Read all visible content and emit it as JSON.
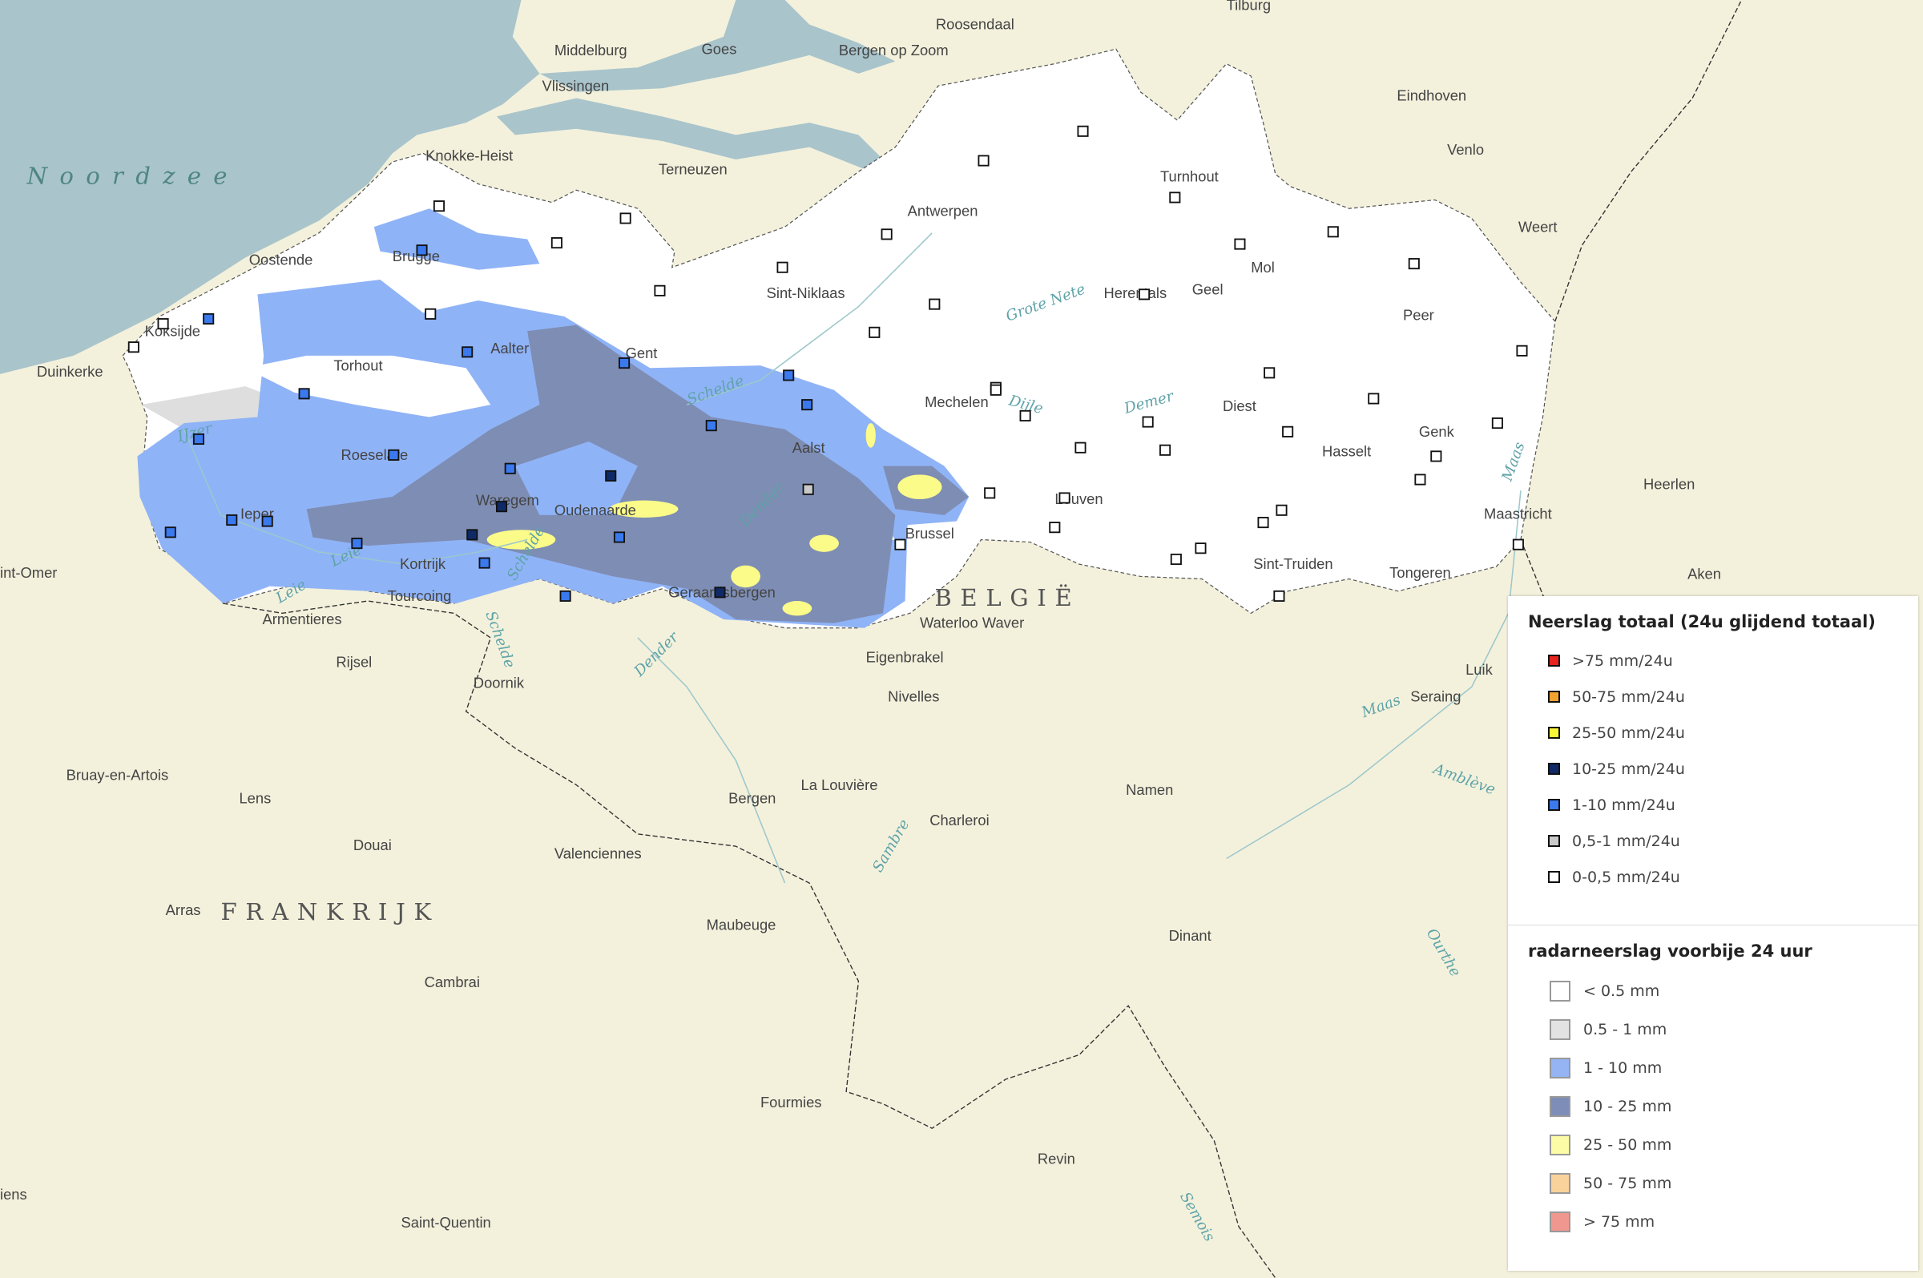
{
  "map": {
    "labels": {
      "sea": "Noordzee",
      "country_be": "BELGIË",
      "country_fr": "FRANKRIJK",
      "cities": [
        "Tilburg",
        "Roosendaal",
        "Middelburg",
        "Goes",
        "Bergen op Zoom",
        "Vlissingen",
        "Knokke-Heist",
        "Terneuzen",
        "Eindhoven",
        "Venlo",
        "Turnhout",
        "Antwerpen",
        "Weert",
        "Oostende",
        "Brugge",
        "Sint-Niklaas",
        "Herentals",
        "Geel",
        "Mol",
        "Koksijde",
        "Peer",
        "Duinkerke",
        "Torhout",
        "Aalter",
        "Gent",
        "Mechelen",
        "Diest",
        "Genk",
        "Roeselare",
        "Aalst",
        "Hasselt",
        "Heerlen",
        "Waregem",
        "Oudenaarde",
        "Leuven",
        "Maastricht",
        "Ieper",
        "Brussel",
        "Sint-Truiden",
        "Tongeren",
        "Aken",
        "int-Omer",
        "Kortrijk",
        "Tourcoing",
        "Geraardsbergen",
        "Waterloo Waver",
        "Armentieres",
        "Eigenbrakel",
        "Luik",
        "Rijsel",
        "Doornik",
        "Nivelles",
        "Seraing",
        "Bruay-en-Artois",
        "Lens",
        "La Louvière",
        "Bergen",
        "Namen",
        "Douai",
        "Charleroi",
        "Valenciennes",
        "Arras",
        "Maubeuge",
        "Dinant",
        "Cambrai",
        "Fourmies",
        "Revin",
        "Saint-Quentin",
        "iens"
      ],
      "rivers": [
        "Schelde",
        "Grote Nete",
        "Dijle",
        "Demer",
        "IJzer",
        "Leie",
        "Schelde",
        "Dender",
        "Dender",
        "Maas",
        "Amblève",
        "Ourthe",
        "Semois",
        "Sambre",
        "Schelde",
        "Maas",
        "Leie"
      ]
    },
    "stations": [
      "0-0,5",
      "0-0,5",
      "0-0,5",
      "0-0,5",
      "1-10",
      "0-0,5",
      "0-0,5",
      "0-0,5",
      "0-0,5",
      "0-0,5",
      "0-0,5",
      "1-10",
      "0-0,5",
      "0-0,5",
      "1-10",
      "0-0,5",
      "1-10",
      "1-10",
      "1-10",
      "1-10",
      "1-10",
      "1-10",
      "10-25",
      "10-25",
      "10-25",
      "1-10",
      "1-10",
      "1-10",
      "1-10",
      "1-10",
      "0,5-1",
      "1-10",
      "1-10",
      "1-10",
      "10-25",
      "1-10",
      "0-0,5",
      "0-0,5",
      "0-0,5",
      "0-0,5",
      "0-0,5",
      "0-0,5",
      "0-0,5",
      "0-0,5",
      "0-0,5",
      "0-0,5",
      "0-0,5",
      "0-0,5",
      "0-0,5",
      "0-0,5",
      "0-0,5",
      "0-0,5",
      "0-0,5",
      "0-0,5",
      "0-0,5",
      "0-0,5",
      "0-0,5",
      "0-0,5",
      "0-0,5",
      "0-0,5",
      "0-0,5",
      "0-0,5",
      "0-0,5",
      "0-0,5"
    ],
    "colors": {
      "sea": "#a9c4cb",
      "land": "#f3f1dc",
      "flanders": "#ffffff",
      "radar_light": "#8fb3f7",
      "radar_dark": "#7e8db3",
      "radar_yellow": "#fbfb8a",
      "radar_grey": "#dedede"
    }
  },
  "legend": {
    "gauge_title": "Neerslag totaal (24u glijdend totaal)",
    "gauge_items": [
      {
        "label": ">75 mm/24u",
        "key": ">75",
        "color": "#e8231d"
      },
      {
        "label": "50-75 mm/24u",
        "key": "50-75",
        "color": "#f2a431"
      },
      {
        "label": "25-50 mm/24u",
        "key": "25-50",
        "color": "#f8f536"
      },
      {
        "label": "10-25 mm/24u",
        "key": "10-25",
        "color": "#0f2a66"
      },
      {
        "label": "1-10 mm/24u",
        "key": "1-10",
        "color": "#3a79ee"
      },
      {
        "label": "0,5-1 mm/24u",
        "key": "0,5-1",
        "color": "#c9c9c9"
      },
      {
        "label": "0-0,5 mm/24u",
        "key": "0-0,5",
        "color": "#ffffff"
      }
    ],
    "radar_title": "radarneerslag voorbije 24 uur",
    "radar_items": [
      {
        "label": "< 0.5 mm",
        "color": "#ffffff"
      },
      {
        "label": "0.5 - 1 mm",
        "color": "#e2e2e2"
      },
      {
        "label": "1 - 10 mm",
        "color": "#94b4f4"
      },
      {
        "label": "10 - 25 mm",
        "color": "#7e8db8"
      },
      {
        "label": "25 - 50 mm",
        "color": "#fdfca6"
      },
      {
        "label": "50 - 75 mm",
        "color": "#f8d19b"
      },
      {
        "label": "> 75 mm",
        "color": "#f09890"
      }
    ]
  }
}
